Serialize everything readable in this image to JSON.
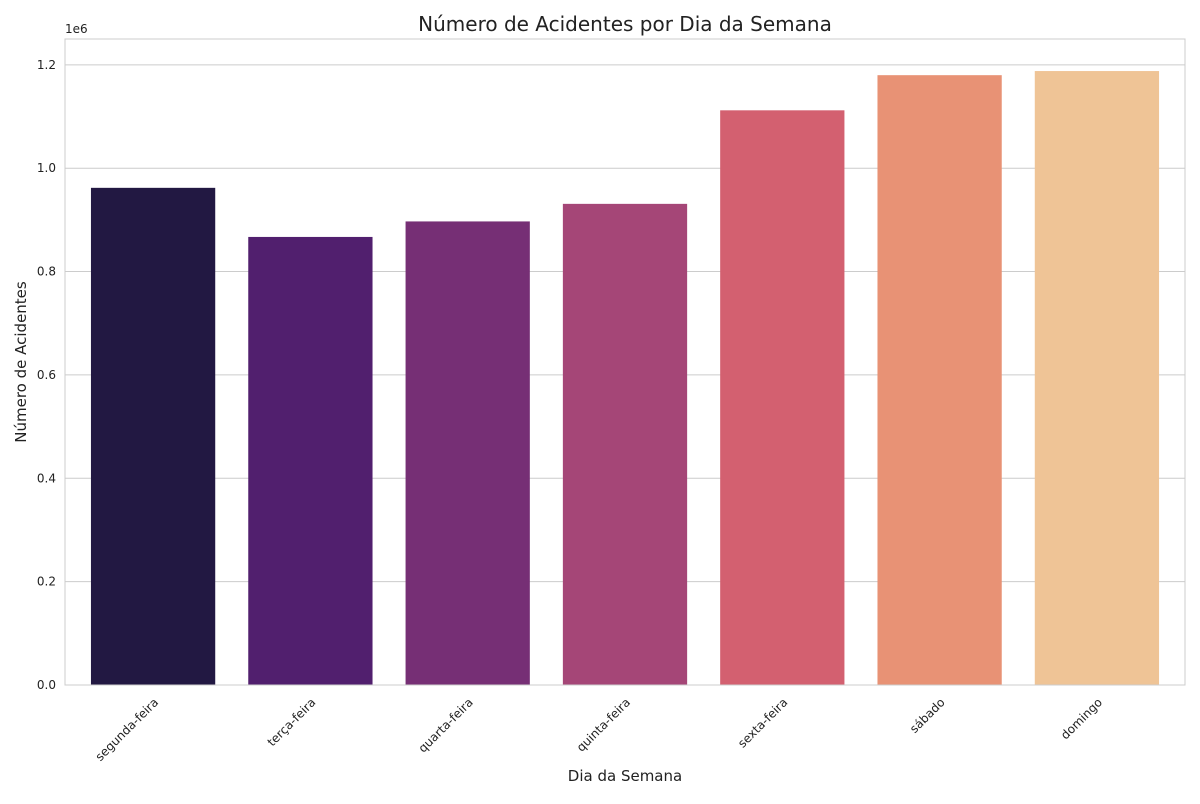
{
  "chart_data": {
    "type": "bar",
    "title": "Número de Acidentes por Dia da Semana",
    "xlabel": "Dia da Semana",
    "ylabel": "Número de Acidentes",
    "y_offset_label": "1e6",
    "categories": [
      "segunda-feira",
      "terça-feira",
      "quarta-feira",
      "quinta-feira",
      "sexta-feira",
      "sábado",
      "domingo"
    ],
    "values": [
      962000,
      867000,
      897000,
      931000,
      1112000,
      1180000,
      1188000
    ],
    "ylim": [
      0,
      1250000
    ],
    "yticks": [
      0,
      200000,
      400000,
      600000,
      800000,
      1000000,
      1200000
    ],
    "ytick_labels": [
      "0.0",
      "0.2",
      "0.4",
      "0.6",
      "0.8",
      "1.0",
      "1.2"
    ],
    "colors": [
      "#221842",
      "#511f6e",
      "#762f75",
      "#a54677",
      "#d36070",
      "#e89275",
      "#efc496"
    ],
    "grid": "horizontal",
    "legend": "none"
  }
}
